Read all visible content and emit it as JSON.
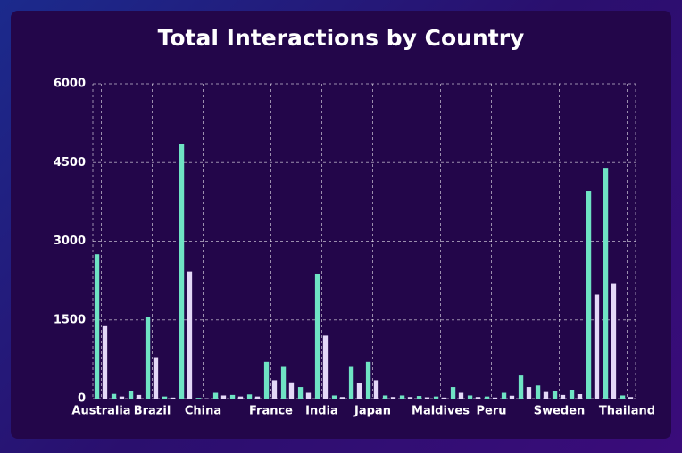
{
  "chart_data": {
    "type": "bar",
    "title": "Total Interactions by Country",
    "categories": [
      "Australia",
      null,
      null,
      "Brazil",
      null,
      null,
      "China",
      null,
      null,
      null,
      "France",
      null,
      null,
      "India",
      null,
      null,
      "Japan",
      null,
      null,
      null,
      "Maldives",
      null,
      null,
      "Peru",
      null,
      null,
      null,
      "Sweden",
      null,
      null,
      null,
      "Thailand"
    ],
    "series": [
      {
        "color": "#6fe3c4",
        "values": [
          2750,
          90,
          150,
          1560,
          40,
          4850,
          15,
          110,
          70,
          80,
          700,
          620,
          220,
          2380,
          60,
          620,
          700,
          60,
          60,
          50,
          40,
          220,
          60,
          40,
          110,
          440,
          250,
          140,
          170,
          3960,
          4400,
          60
        ]
      },
      {
        "color": "#e4d8f7",
        "values": [
          1380,
          40,
          70,
          790,
          20,
          2420,
          5,
          60,
          40,
          40,
          350,
          310,
          110,
          1200,
          30,
          300,
          350,
          30,
          30,
          25,
          20,
          110,
          30,
          20,
          55,
          220,
          125,
          70,
          85,
          1980,
          2200,
          30
        ]
      }
    ],
    "ylim": [
      0,
      6000
    ],
    "yticks": [
      0,
      1500,
      3000,
      4500,
      6000
    ],
    "grid": true
  }
}
